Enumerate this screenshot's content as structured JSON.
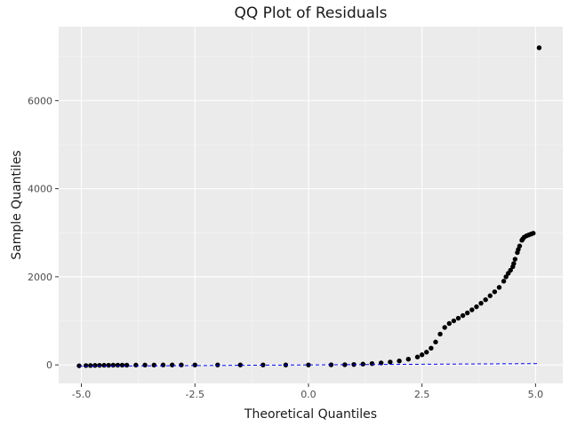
{
  "chart_data": {
    "type": "scatter",
    "title": "QQ Plot of Residuals",
    "xlabel": "Theoretical Quantiles",
    "ylabel": "Sample Quantiles",
    "xlim": [
      -5.5,
      5.6
    ],
    "ylim": [
      -420,
      7680
    ],
    "x_ticks": [
      -5.0,
      -2.5,
      0.0,
      2.5,
      5.0
    ],
    "x_tick_labels": [
      "-5.0",
      "-2.5",
      "0.0",
      "2.5",
      "5.0"
    ],
    "y_ticks": [
      0,
      2000,
      4000,
      6000
    ],
    "y_tick_labels": [
      "0",
      "2000",
      "4000",
      "6000"
    ],
    "grid": true,
    "panel_color": "#ebebeb",
    "point_color": "#000000",
    "reference_line": {
      "style": "dashed",
      "color": "#0000ff",
      "points": [
        [
          -5.05,
          -30
        ],
        [
          5.05,
          30
        ]
      ]
    },
    "points": [
      [
        -5.05,
        -20
      ],
      [
        -4.9,
        -15
      ],
      [
        -4.8,
        -14
      ],
      [
        -4.7,
        -12
      ],
      [
        -4.6,
        -10
      ],
      [
        -4.5,
        -9
      ],
      [
        -4.4,
        -8
      ],
      [
        -4.3,
        -7
      ],
      [
        -4.2,
        -6
      ],
      [
        -4.1,
        -5
      ],
      [
        -4.0,
        -5
      ],
      [
        -3.8,
        -4
      ],
      [
        -3.6,
        -3
      ],
      [
        -3.4,
        -3
      ],
      [
        -3.2,
        -2
      ],
      [
        -3.0,
        -2
      ],
      [
        -2.8,
        -1
      ],
      [
        -2.5,
        -1
      ],
      [
        -2.0,
        0
      ],
      [
        -1.5,
        0
      ],
      [
        -1.0,
        0
      ],
      [
        -0.5,
        0
      ],
      [
        0.0,
        0
      ],
      [
        0.5,
        2
      ],
      [
        0.8,
        5
      ],
      [
        1.0,
        10
      ],
      [
        1.2,
        18
      ],
      [
        1.4,
        30
      ],
      [
        1.6,
        45
      ],
      [
        1.8,
        65
      ],
      [
        2.0,
        90
      ],
      [
        2.2,
        130
      ],
      [
        2.4,
        180
      ],
      [
        2.5,
        230
      ],
      [
        2.6,
        290
      ],
      [
        2.7,
        380
      ],
      [
        2.8,
        520
      ],
      [
        2.9,
        700
      ],
      [
        3.0,
        850
      ],
      [
        3.1,
        940
      ],
      [
        3.2,
        1000
      ],
      [
        3.3,
        1060
      ],
      [
        3.4,
        1120
      ],
      [
        3.5,
        1180
      ],
      [
        3.6,
        1250
      ],
      [
        3.7,
        1320
      ],
      [
        3.8,
        1400
      ],
      [
        3.9,
        1480
      ],
      [
        4.0,
        1570
      ],
      [
        4.1,
        1660
      ],
      [
        4.2,
        1760
      ],
      [
        4.3,
        1900
      ],
      [
        4.35,
        2000
      ],
      [
        4.4,
        2080
      ],
      [
        4.45,
        2150
      ],
      [
        4.5,
        2230
      ],
      [
        4.52,
        2300
      ],
      [
        4.55,
        2400
      ],
      [
        4.6,
        2550
      ],
      [
        4.62,
        2620
      ],
      [
        4.65,
        2700
      ],
      [
        4.7,
        2830
      ],
      [
        4.72,
        2860
      ],
      [
        4.75,
        2900
      ],
      [
        4.8,
        2930
      ],
      [
        4.85,
        2950
      ],
      [
        4.9,
        2970
      ],
      [
        4.95,
        2990
      ],
      [
        5.08,
        7200
      ]
    ]
  }
}
